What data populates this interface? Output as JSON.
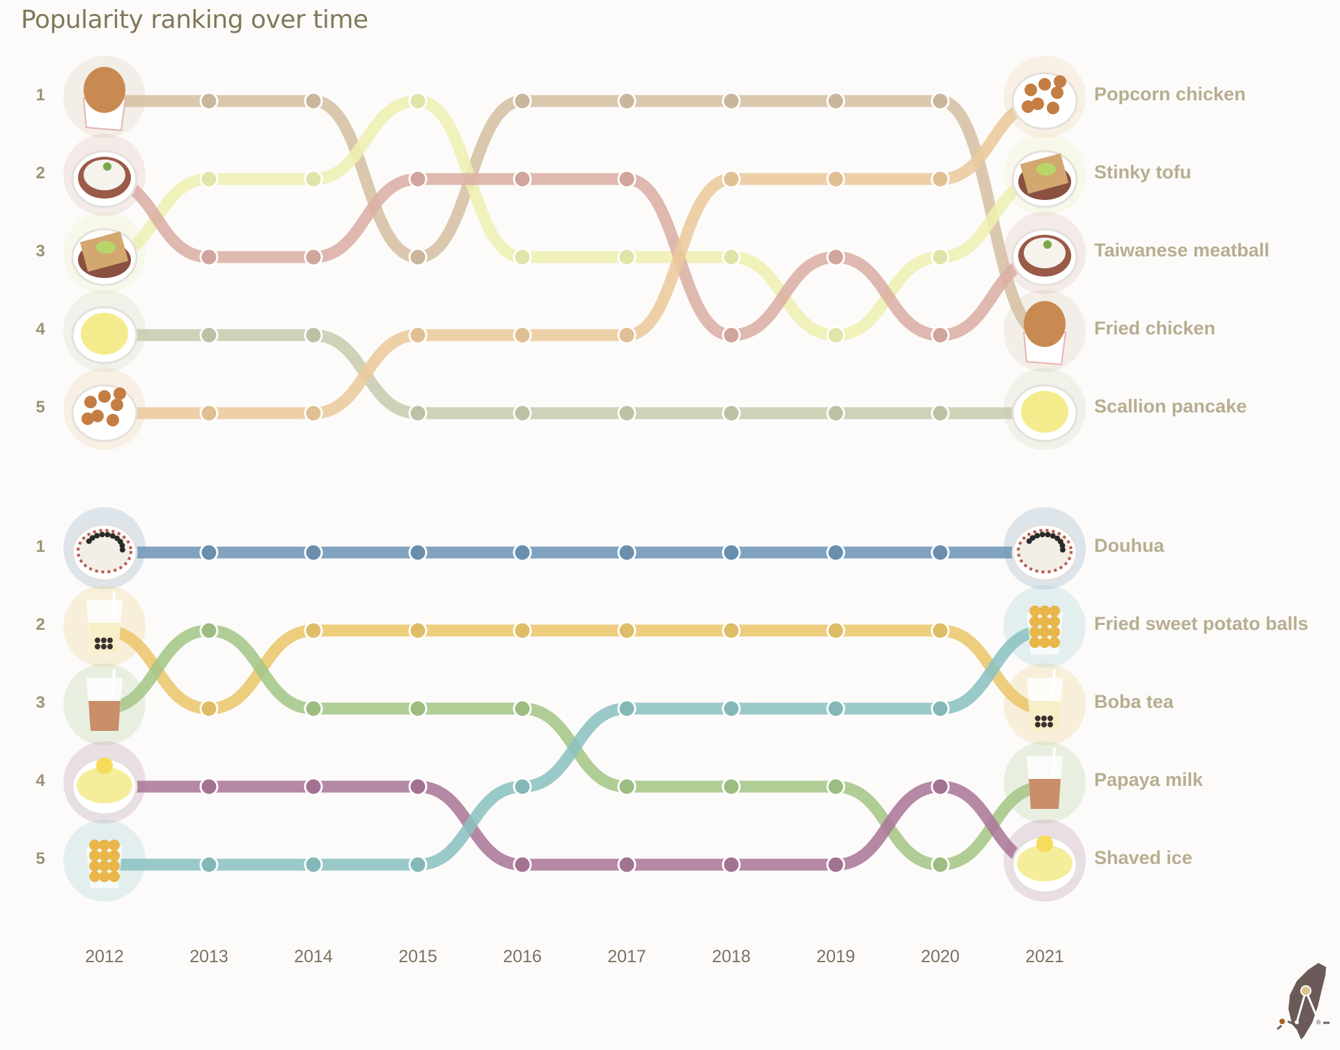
{
  "title": "Popularity ranking over time",
  "chart_data": [
    {
      "type": "bump",
      "title": "Popularity ranking over time",
      "x": [
        2012,
        2013,
        2014,
        2015,
        2016,
        2017,
        2018,
        2019,
        2020,
        2021
      ],
      "y_ticks": [
        1,
        2,
        3,
        4,
        5
      ],
      "y_reversed": true,
      "series": [
        {
          "name": "Fried chicken",
          "icon": "fried-chicken",
          "color": "#d5c0a3",
          "values": [
            1,
            1,
            1,
            3,
            1,
            1,
            1,
            1,
            1,
            4
          ]
        },
        {
          "name": "Stinky tofu",
          "icon": "stinky-tofu",
          "color": "#eeefb2",
          "values": [
            3,
            2,
            2,
            1,
            3,
            3,
            3,
            4,
            3,
            2
          ]
        },
        {
          "name": "Taiwanese meatball",
          "icon": "taiwanese-meatball",
          "color": "#dbaea4",
          "values": [
            2,
            3,
            3,
            2,
            2,
            2,
            4,
            3,
            4,
            3
          ]
        },
        {
          "name": "Scallion pancake",
          "icon": "scallion-pancake",
          "color": "#c8cbae",
          "values": [
            4,
            4,
            4,
            5,
            5,
            5,
            5,
            5,
            5,
            5
          ]
        },
        {
          "name": "Popcorn chicken",
          "icon": "popcorn-chicken",
          "color": "#ebc99b",
          "values": [
            5,
            5,
            5,
            4,
            4,
            4,
            2,
            2,
            2,
            1
          ]
        }
      ]
    },
    {
      "type": "bump",
      "x": [
        2012,
        2013,
        2014,
        2015,
        2016,
        2017,
        2018,
        2019,
        2020,
        2021
      ],
      "y_ticks": [
        1,
        2,
        3,
        4,
        5
      ],
      "y_reversed": true,
      "series": [
        {
          "name": "Douhua",
          "icon": "douhua",
          "color": "#7096b6",
          "values": [
            1,
            1,
            1,
            1,
            1,
            1,
            1,
            1,
            1,
            1
          ]
        },
        {
          "name": "Boba tea",
          "icon": "boba-tea",
          "color": "#ebc66c",
          "values": [
            2,
            3,
            2,
            2,
            2,
            2,
            2,
            2,
            2,
            3
          ]
        },
        {
          "name": "Papaya milk",
          "icon": "papaya-milk",
          "color": "#a5c688",
          "values": [
            3,
            2,
            3,
            3,
            3,
            4,
            4,
            4,
            5,
            4
          ]
        },
        {
          "name": "Shaved ice",
          "icon": "shaved-ice",
          "color": "#ab7899",
          "values": [
            4,
            4,
            4,
            4,
            5,
            5,
            5,
            5,
            4,
            5
          ]
        },
        {
          "name": "Fried sweet potato balls",
          "icon": "fried-sweet-potato-balls",
          "color": "#8bc2c2",
          "values": [
            5,
            5,
            5,
            5,
            4,
            3,
            3,
            3,
            3,
            2
          ]
        }
      ]
    }
  ],
  "logo": {
    "icon": "taiwan-map-logo",
    "color": "#6b5a58"
  }
}
